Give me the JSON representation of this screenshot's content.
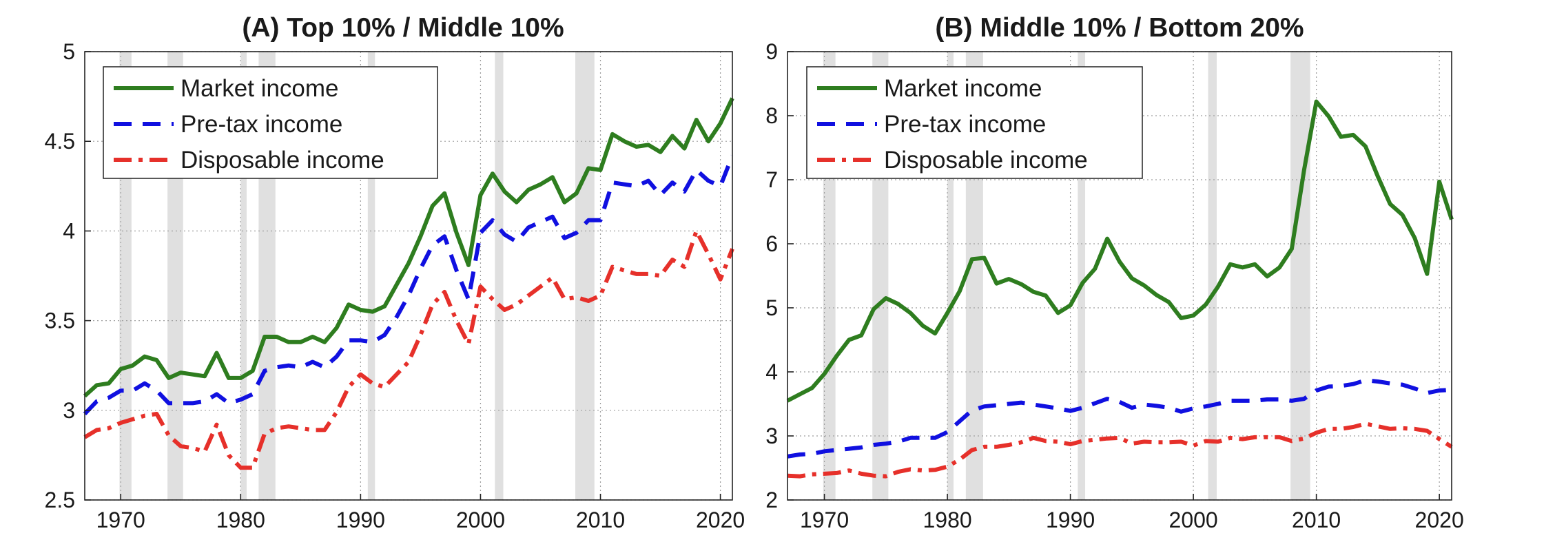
{
  "colors": {
    "market": "#2e7d1f",
    "pretax": "#1010e0",
    "disposable": "#e6302a",
    "recession": "#e0e0e0",
    "grid": "#9e9e9e",
    "axis": "#222222"
  },
  "recessions": [
    [
      1969.9,
      1970.9
    ],
    [
      1973.9,
      1975.2
    ],
    [
      1980.0,
      1980.5
    ],
    [
      1981.5,
      1982.9
    ],
    [
      1990.6,
      1991.2
    ],
    [
      2001.2,
      2001.9
    ],
    [
      2007.9,
      2009.5
    ]
  ],
  "chart_data": [
    {
      "type": "line",
      "title": "(A) Top 10% / Middle 10%",
      "xlabel": "",
      "ylabel": "",
      "xlim": [
        1967,
        2021
      ],
      "ylim": [
        2.5,
        5
      ],
      "xticks": [
        1970,
        1980,
        1990,
        2000,
        2010,
        2020
      ],
      "yticks": [
        2.5,
        3,
        3.5,
        4,
        4.5,
        5
      ],
      "xtick_labels": [
        "1970",
        "1980",
        "1990",
        "2000",
        "2010",
        "2020"
      ],
      "ytick_labels": [
        "2.5",
        "3",
        "3.5",
        "4",
        "4.5",
        "5"
      ],
      "grid": true,
      "legend_position": "top-left",
      "x": [
        1967,
        1968,
        1969,
        1970,
        1971,
        1972,
        1973,
        1974,
        1975,
        1976,
        1977,
        1978,
        1979,
        1980,
        1981,
        1982,
        1983,
        1984,
        1985,
        1986,
        1987,
        1988,
        1989,
        1990,
        1991,
        1992,
        1993,
        1994,
        1995,
        1996,
        1997,
        1998,
        1999,
        2000,
        2001,
        2002,
        2003,
        2004,
        2005,
        2006,
        2007,
        2008,
        2009,
        2010,
        2011,
        2012,
        2013,
        2014,
        2015,
        2016,
        2017,
        2018,
        2019,
        2020,
        2021
      ],
      "series": [
        {
          "name": "Market income",
          "style": "solid",
          "values": [
            3.08,
            3.14,
            3.15,
            3.23,
            3.25,
            3.3,
            3.28,
            3.18,
            3.21,
            3.2,
            3.19,
            3.32,
            3.18,
            3.18,
            3.22,
            3.41,
            3.41,
            3.38,
            3.38,
            3.41,
            3.38,
            3.46,
            3.59,
            3.56,
            3.55,
            3.58,
            3.7,
            3.82,
            3.97,
            4.14,
            4.21,
            3.99,
            3.81,
            4.2,
            4.32,
            4.22,
            4.16,
            4.23,
            4.26,
            4.3,
            4.16,
            4.21,
            4.35,
            4.34,
            4.54,
            4.5,
            4.47,
            4.48,
            4.44,
            4.53,
            4.46,
            4.62,
            4.5,
            4.6,
            4.74
          ]
        },
        {
          "name": "Pre-tax income",
          "style": "dashed",
          "values": [
            2.98,
            3.05,
            3.07,
            3.11,
            3.11,
            3.15,
            3.11,
            3.04,
            3.04,
            3.04,
            3.05,
            3.09,
            3.04,
            3.06,
            3.09,
            3.22,
            3.24,
            3.25,
            3.24,
            3.27,
            3.24,
            3.3,
            3.39,
            3.39,
            3.38,
            3.42,
            3.52,
            3.64,
            3.79,
            3.92,
            3.97,
            3.78,
            3.62,
            3.99,
            4.06,
            3.98,
            3.94,
            4.02,
            4.05,
            4.08,
            3.96,
            3.99,
            4.06,
            4.06,
            4.27,
            4.26,
            4.25,
            4.28,
            4.2,
            4.27,
            4.22,
            4.34,
            4.28,
            4.25,
            4.42
          ]
        },
        {
          "name": "Disposable income",
          "style": "dashdot",
          "values": [
            2.85,
            2.89,
            2.9,
            2.93,
            2.95,
            2.97,
            2.98,
            2.86,
            2.8,
            2.79,
            2.77,
            2.92,
            2.75,
            2.68,
            2.68,
            2.87,
            2.9,
            2.91,
            2.9,
            2.89,
            2.89,
            2.99,
            3.13,
            3.2,
            3.15,
            3.13,
            3.2,
            3.27,
            3.42,
            3.59,
            3.66,
            3.5,
            3.37,
            3.69,
            3.62,
            3.56,
            3.59,
            3.64,
            3.69,
            3.74,
            3.62,
            3.63,
            3.61,
            3.64,
            3.8,
            3.78,
            3.76,
            3.76,
            3.75,
            3.84,
            3.8,
            4.0,
            3.87,
            3.73,
            3.9
          ]
        }
      ]
    },
    {
      "type": "line",
      "title": "(B) Middle 10% / Bottom 20%",
      "xlabel": "",
      "ylabel": "",
      "xlim": [
        1967,
        2021
      ],
      "ylim": [
        2,
        9
      ],
      "xticks": [
        1970,
        1980,
        1990,
        2000,
        2010,
        2020
      ],
      "yticks": [
        2,
        3,
        4,
        5,
        6,
        7,
        8,
        9
      ],
      "xtick_labels": [
        "1970",
        "1980",
        "1990",
        "2000",
        "2010",
        "2020"
      ],
      "ytick_labels": [
        "2",
        "3",
        "4",
        "5",
        "6",
        "7",
        "8",
        "9"
      ],
      "grid": true,
      "legend_position": "top-left",
      "x": [
        1967,
        1968,
        1969,
        1970,
        1971,
        1972,
        1973,
        1974,
        1975,
        1976,
        1977,
        1978,
        1979,
        1980,
        1981,
        1982,
        1983,
        1984,
        1985,
        1986,
        1987,
        1988,
        1989,
        1990,
        1991,
        1992,
        1993,
        1994,
        1995,
        1996,
        1997,
        1998,
        1999,
        2000,
        2001,
        2002,
        2003,
        2004,
        2005,
        2006,
        2007,
        2008,
        2009,
        2010,
        2011,
        2012,
        2013,
        2014,
        2015,
        2016,
        2017,
        2018,
        2019,
        2020,
        2021
      ],
      "series": [
        {
          "name": "Market income",
          "style": "solid",
          "values": [
            3.55,
            3.65,
            3.75,
            3.97,
            4.25,
            4.5,
            4.57,
            4.98,
            5.15,
            5.06,
            4.92,
            4.72,
            4.6,
            4.92,
            5.26,
            5.76,
            5.78,
            5.38,
            5.45,
            5.37,
            5.25,
            5.19,
            4.92,
            5.04,
            5.39,
            5.61,
            6.08,
            5.72,
            5.46,
            5.35,
            5.2,
            5.09,
            4.84,
            4.88,
            5.05,
            5.33,
            5.68,
            5.63,
            5.68,
            5.49,
            5.63,
            5.92,
            7.15,
            8.22,
            7.99,
            7.67,
            7.7,
            7.52,
            7.05,
            6.62,
            6.45,
            6.09,
            5.53,
            6.97,
            6.38
          ]
        },
        {
          "name": "Pre-tax income",
          "style": "dashed",
          "values": [
            2.68,
            2.71,
            2.72,
            2.76,
            2.78,
            2.8,
            2.82,
            2.86,
            2.88,
            2.91,
            2.97,
            2.97,
            2.97,
            3.06,
            3.23,
            3.4,
            3.46,
            3.48,
            3.5,
            3.52,
            3.49,
            3.46,
            3.43,
            3.39,
            3.44,
            3.51,
            3.58,
            3.53,
            3.44,
            3.49,
            3.47,
            3.44,
            3.38,
            3.43,
            3.46,
            3.5,
            3.55,
            3.55,
            3.55,
            3.57,
            3.57,
            3.55,
            3.58,
            3.71,
            3.77,
            3.78,
            3.81,
            3.87,
            3.85,
            3.82,
            3.8,
            3.74,
            3.67,
            3.71,
            3.72
          ]
        },
        {
          "name": "Disposable income",
          "style": "dashdot",
          "values": [
            2.38,
            2.37,
            2.4,
            2.41,
            2.42,
            2.46,
            2.41,
            2.38,
            2.37,
            2.44,
            2.48,
            2.46,
            2.47,
            2.52,
            2.63,
            2.78,
            2.83,
            2.83,
            2.86,
            2.9,
            2.97,
            2.92,
            2.91,
            2.87,
            2.92,
            2.94,
            2.96,
            2.97,
            2.88,
            2.91,
            2.9,
            2.9,
            2.91,
            2.85,
            2.92,
            2.91,
            2.97,
            2.95,
            2.98,
            2.98,
            2.98,
            2.92,
            2.96,
            3.05,
            3.11,
            3.11,
            3.14,
            3.19,
            3.15,
            3.11,
            3.12,
            3.11,
            3.08,
            2.95,
            2.83
          ]
        }
      ]
    }
  ]
}
